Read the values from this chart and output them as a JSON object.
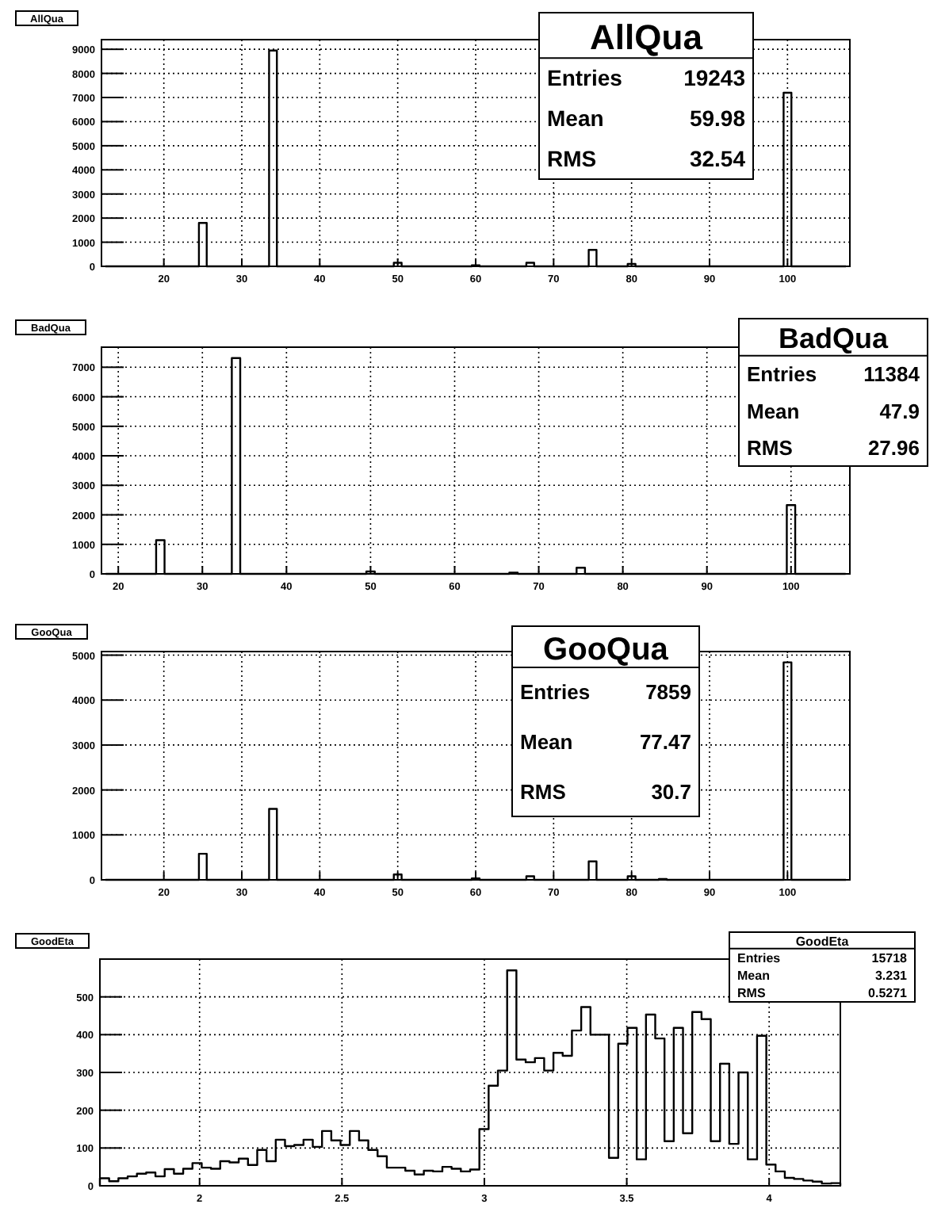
{
  "chart_data": [
    {
      "type": "histogram",
      "title": "AllQua",
      "bins": [
        12.5,
        24.5,
        25.5,
        33.5,
        34.5,
        49.5,
        50.5,
        59.5,
        60.5,
        66.5,
        67.5,
        74.5,
        75.5,
        79.5,
        80.5,
        99.5,
        100.5,
        107.5
      ],
      "values": [
        0,
        1800,
        0,
        8950,
        0,
        150,
        0,
        40,
        0,
        150,
        0,
        680,
        0,
        100,
        0,
        7200,
        0
      ],
      "color": "#000000",
      "xlim": [
        12,
        108
      ],
      "ylim": [
        0,
        9400
      ],
      "xticks": [
        20,
        30,
        40,
        50,
        60,
        70,
        80,
        90,
        100
      ],
      "yticks": [
        0,
        1000,
        2000,
        3000,
        4000,
        5000,
        6000,
        7000,
        8000,
        9000
      ],
      "grid": true,
      "annotations": [
        "Entries 19243",
        "Mean 59.98",
        "RMS 32.54"
      ]
    },
    {
      "type": "histogram",
      "title": "BadQua",
      "bins": [
        18.5,
        24.5,
        25.5,
        33.5,
        34.5,
        49.5,
        50.5,
        66.5,
        67.5,
        74.5,
        75.5,
        99.5,
        100.5,
        106.5
      ],
      "values": [
        0,
        1140,
        0,
        7310,
        0,
        80,
        0,
        40,
        0,
        210,
        0,
        2330,
        0
      ],
      "color": "#000000",
      "xlim": [
        18,
        107
      ],
      "ylim": [
        0,
        7680
      ],
      "xticks": [
        20,
        30,
        40,
        50,
        60,
        70,
        80,
        90,
        100
      ],
      "yticks": [
        0,
        1000,
        2000,
        3000,
        4000,
        5000,
        6000,
        7000
      ],
      "grid": true,
      "annotations": [
        "Entries 11384",
        "Mean 47.9",
        "RMS 27.96"
      ]
    },
    {
      "type": "histogram",
      "title": "GooQua",
      "bins": [
        12.5,
        24.5,
        25.5,
        33.5,
        34.5,
        49.5,
        50.5,
        59.5,
        60.5,
        66.5,
        67.5,
        74.5,
        75.5,
        79.5,
        80.5,
        83.5,
        84.5,
        99.5,
        100.5,
        107.5
      ],
      "values": [
        0,
        580,
        0,
        1580,
        0,
        120,
        0,
        30,
        0,
        80,
        0,
        410,
        0,
        80,
        0,
        20,
        0,
        4840,
        0
      ],
      "color": "#000000",
      "xlim": [
        12,
        108
      ],
      "ylim": [
        0,
        5080
      ],
      "xticks": [
        20,
        30,
        40,
        50,
        60,
        70,
        80,
        90,
        100
      ],
      "yticks": [
        0,
        1000,
        2000,
        3000,
        4000,
        5000
      ],
      "grid": true,
      "annotations": [
        "Entries 7859",
        "Mean 77.47",
        "RMS 30.7"
      ]
    },
    {
      "type": "histogram",
      "title": "GoodEta",
      "bins": [
        1.65,
        1.6825,
        1.715,
        1.7475,
        1.78,
        1.8125,
        1.845,
        1.8775,
        1.91,
        1.9425,
        1.975,
        2.0075,
        2.04,
        2.0725,
        2.105,
        2.1375,
        2.17,
        2.2025,
        2.235,
        2.2675,
        2.3,
        2.3325,
        2.365,
        2.3975,
        2.43,
        2.4625,
        2.495,
        2.5275,
        2.56,
        2.5925,
        2.625,
        2.6575,
        2.69,
        2.7225,
        2.755,
        2.7875,
        2.82,
        2.8525,
        2.885,
        2.9175,
        2.95,
        2.9825,
        3.015,
        3.0475,
        3.08,
        3.1125,
        3.145,
        3.1775,
        3.21,
        3.2425,
        3.275,
        3.3075,
        3.34,
        3.3725,
        3.405,
        3.4375,
        3.47,
        3.5025,
        3.535,
        3.5675,
        3.6,
        3.6325,
        3.665,
        3.6975,
        3.73,
        3.7625,
        3.795,
        3.8275,
        3.86,
        3.8925,
        3.925,
        3.9575,
        3.99,
        4.0225,
        4.055,
        4.0875,
        4.12,
        4.1525,
        4.185,
        4.2175,
        4.25
      ],
      "values": [
        20,
        12,
        20,
        25,
        32,
        35,
        25,
        44,
        32,
        45,
        60,
        48,
        45,
        65,
        62,
        72,
        55,
        95,
        65,
        122,
        105,
        108,
        122,
        103,
        145,
        120,
        108,
        145,
        120,
        95,
        78,
        48,
        48,
        40,
        30,
        40,
        38,
        50,
        45,
        38,
        43,
        150,
        265,
        305,
        570,
        334,
        327,
        338,
        305,
        352,
        344,
        411,
        473,
        400,
        400,
        74,
        376,
        418,
        70,
        453,
        390,
        118,
        418,
        139,
        460,
        441,
        118,
        323,
        111,
        300,
        70,
        397,
        56,
        38,
        21,
        18,
        14,
        11,
        6,
        7
      ],
      "color": "#000000",
      "xlim": [
        1.65,
        4.25
      ],
      "ylim": [
        0,
        600
      ],
      "xticks": [
        2,
        2.5,
        3,
        3.5,
        4
      ],
      "yticks": [
        0,
        100,
        200,
        300,
        400,
        500
      ],
      "grid": true,
      "annotations": [
        "Entries 15718",
        "Mean 3.231",
        "RMS 0.5271"
      ]
    }
  ]
}
